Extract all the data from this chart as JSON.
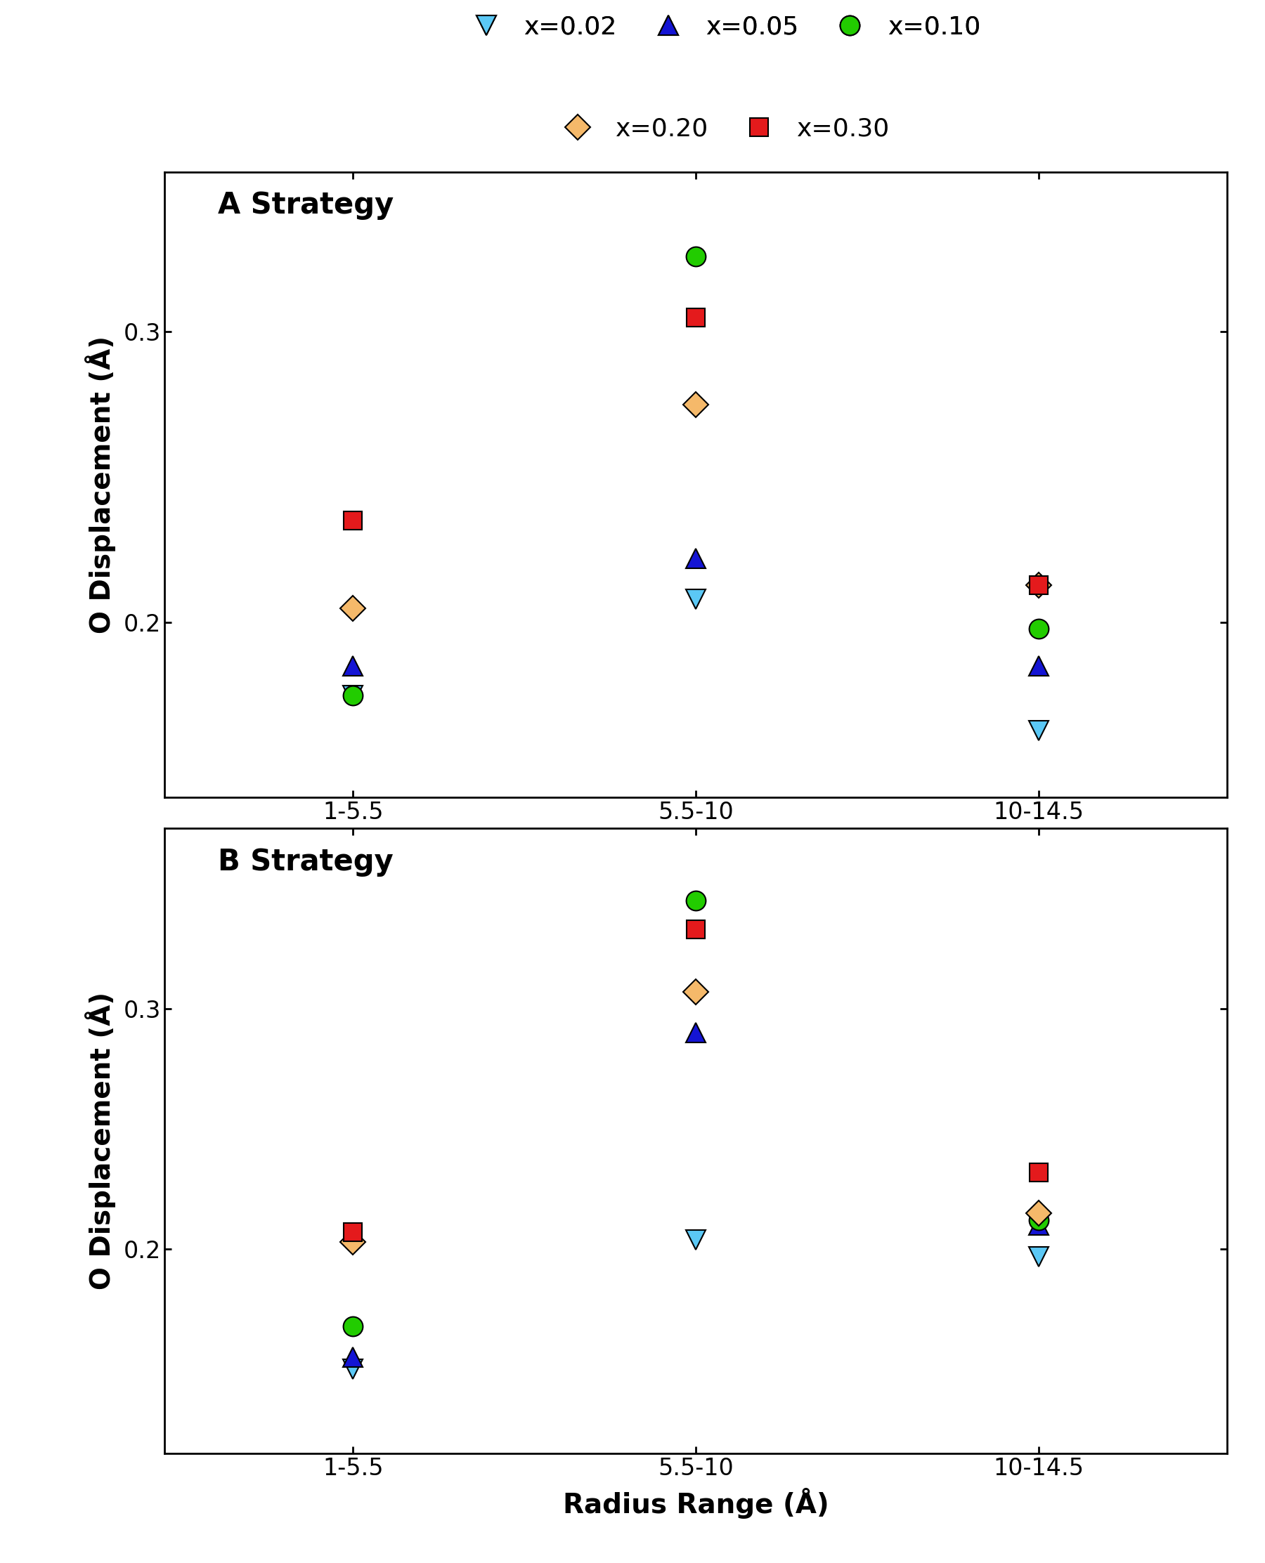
{
  "panel_A_label": "A Strategy",
  "panel_B_label": "B Strategy",
  "x_categories": [
    "1-5.5",
    "5.5-10",
    "10-14.5"
  ],
  "xlabel": "Radius Range (Å)",
  "ylabel": "O Displacement (Å)",
  "series": [
    {
      "label": "x=0.02",
      "color": "#5BC8F5",
      "marker": "v",
      "markersize": 20,
      "panel_A": [
        0.175,
        0.208,
        0.163
      ],
      "panel_B": [
        0.15,
        0.204,
        0.197
      ]
    },
    {
      "label": "x=0.05",
      "color": "#1414D4",
      "marker": "^",
      "markersize": 20,
      "panel_A": [
        0.185,
        0.222,
        0.185
      ],
      "panel_B": [
        0.155,
        0.29,
        0.21
      ]
    },
    {
      "label": "x=0.10",
      "color": "#22CC00",
      "marker": "o",
      "markersize": 20,
      "panel_A": [
        0.175,
        0.326,
        0.198
      ],
      "panel_B": [
        0.168,
        0.345,
        0.212
      ]
    },
    {
      "label": "x=0.20",
      "color": "#F5B96A",
      "marker": "D",
      "markersize": 18,
      "panel_A": [
        0.205,
        0.275,
        0.213
      ],
      "panel_B": [
        0.203,
        0.307,
        0.215
      ]
    },
    {
      "label": "x=0.30",
      "color": "#E41A1C",
      "marker": "s",
      "markersize": 19,
      "panel_A": [
        0.235,
        0.305,
        0.213
      ],
      "panel_B": [
        0.207,
        0.333,
        0.232
      ]
    }
  ],
  "ylim_A": [
    0.14,
    0.355
  ],
  "ylim_B": [
    0.115,
    0.375
  ],
  "yticks_A": [
    0.2,
    0.3
  ],
  "yticks_B": [
    0.2,
    0.3
  ],
  "background_color": "#ffffff",
  "legend_fontsize": 26,
  "axis_label_fontsize": 28,
  "tick_fontsize": 24,
  "panel_label_fontsize": 30
}
